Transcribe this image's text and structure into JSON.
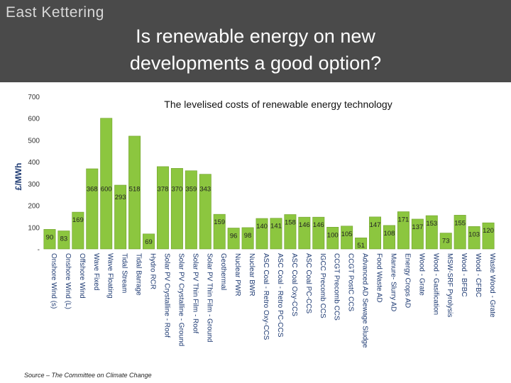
{
  "header": {
    "brand": "East Kettering",
    "title_line1": "Is renewable energy on new",
    "title_line2": "developments a  good option?"
  },
  "footer": {
    "source": "Source – The Committee on Climate Change"
  },
  "colors": {
    "background": "#4a4a4a",
    "bar_fill": "#8cc63f",
    "bar_stroke": "#6fa02a",
    "panel": "#ffffff"
  },
  "chart_data": {
    "type": "bar",
    "title": "The levelised costs of renewable energy technology",
    "xlabel": "",
    "ylabel": "£/MWh",
    "ylim": [
      0,
      700
    ],
    "yticks": [
      0,
      100,
      200,
      300,
      400,
      500,
      600,
      700
    ],
    "ytick_labels": [
      "-",
      "100",
      "200",
      "300",
      "400",
      "500",
      "600",
      "700"
    ],
    "grid": false,
    "legend": "none",
    "categories": [
      "Onshore Wind (s)",
      "Onshore Wind (L)",
      "Offshore Wind",
      "Wave Fixed",
      "Wave Floating",
      "Tidal Stream",
      "Tidal Barrage",
      "Hydro RCR",
      "Solar PV Crystalline - Roof",
      "Solar PV Crystalline - Ground",
      "Solar PV Thin Film - Roof",
      "Solar PV Thin Film - Ground",
      "Geothermal",
      "Nuclear PWR",
      "Nuclear BWR",
      "ASC Coal - Retro Oxy-CCS",
      "ASC Coal - Retro PC-CCS",
      "ASC Coal Oxy-CCS",
      "ASC Coal PC-CCS",
      "IGCC Precomb CCS",
      "CCGT Precomb CCS",
      "CCGT PostC CCS",
      "Advanced AD Sewage Sludge",
      "Food Waste AD",
      "Manure- Slurry AD",
      "Energy Crops AD",
      "Wood - Grate",
      "Wood - Gasification",
      "MSW-SRF Pyrolysis",
      "Wood - BFBC",
      "Wood - CFBC",
      "Waste Wood - Grate"
    ],
    "values": [
      90,
      83,
      169,
      368,
      600,
      293,
      518,
      69,
      378,
      370,
      359,
      343,
      159,
      96,
      98,
      140,
      141,
      158,
      146,
      146,
      100,
      105,
      51,
      147,
      108,
      171,
      137,
      153,
      73,
      155,
      103,
      120
    ]
  }
}
